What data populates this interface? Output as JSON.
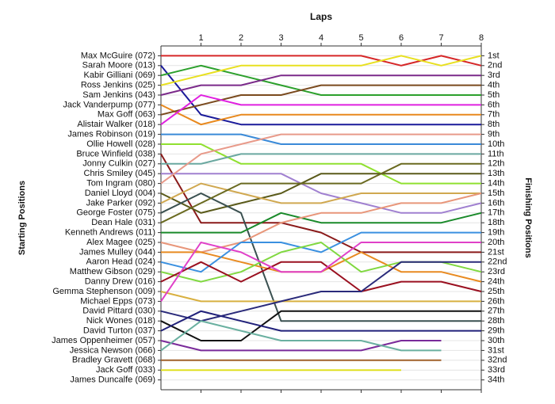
{
  "chart_data": {
    "type": "line",
    "title": "Laps",
    "y_label": "Starting Positions",
    "y2_label": "Finishing Positions",
    "xlim": [
      0,
      8
    ],
    "xticks": [
      1,
      2,
      3,
      4,
      5,
      6,
      7,
      8
    ],
    "ylim": [
      35,
      0
    ],
    "yticks": [
      1,
      2,
      3,
      4,
      5,
      6,
      7,
      8,
      9,
      10,
      11,
      12,
      13,
      14,
      15,
      16,
      17,
      18,
      19,
      20,
      21,
      22,
      23,
      24,
      25,
      26,
      27,
      28,
      29,
      30,
      31,
      32,
      33,
      34
    ],
    "y2lim": [
      35,
      0
    ],
    "y2ticks": [
      {
        "value": 1,
        "label": "1st"
      },
      {
        "value": 2,
        "label": "2nd"
      },
      {
        "value": 3,
        "label": "3rd"
      },
      {
        "value": 4,
        "label": "4th"
      },
      {
        "value": 5,
        "label": "5th"
      },
      {
        "value": 6,
        "label": "6th"
      },
      {
        "value": 7,
        "label": "7th"
      },
      {
        "value": 8,
        "label": "8th"
      },
      {
        "value": 9,
        "label": "9th"
      },
      {
        "value": 10,
        "label": "10th"
      },
      {
        "value": 11,
        "label": "11th"
      },
      {
        "value": 12,
        "label": "12th"
      },
      {
        "value": 13,
        "label": "13th"
      },
      {
        "value": 14,
        "label": "14th"
      },
      {
        "value": 15,
        "label": "15th"
      },
      {
        "value": 16,
        "label": "16th"
      },
      {
        "value": 17,
        "label": "17th"
      },
      {
        "value": 18,
        "label": "18th"
      },
      {
        "value": 19,
        "label": "19th"
      },
      {
        "value": 20,
        "label": "20th"
      },
      {
        "value": 21,
        "label": "21st"
      },
      {
        "value": 22,
        "label": "22nd"
      },
      {
        "value": 23,
        "label": "23rd"
      },
      {
        "value": 24,
        "label": "24th"
      },
      {
        "value": 25,
        "label": "25th"
      },
      {
        "value": 26,
        "label": "26th"
      },
      {
        "value": 27,
        "label": "27th"
      },
      {
        "value": 28,
        "label": "28th"
      },
      {
        "value": 29,
        "label": "29th"
      },
      {
        "value": 30,
        "label": "30th"
      },
      {
        "value": 31,
        "label": "31st"
      },
      {
        "value": 32,
        "label": "32nd"
      },
      {
        "value": 33,
        "label": "33rd"
      },
      {
        "value": 34,
        "label": "34th"
      }
    ],
    "grid": true,
    "x": [
      0,
      1,
      2,
      3,
      4,
      5,
      6,
      7,
      8
    ],
    "series": [
      {
        "name": "Max McGuire (072)",
        "color": "#d62728",
        "values": [
          1,
          1,
          1,
          1,
          1,
          1,
          2,
          1,
          2
        ]
      },
      {
        "name": "Sarah Moore (013)",
        "color": "#1a1a9a",
        "values": [
          2,
          7,
          8,
          8,
          8,
          8,
          8,
          8,
          8
        ]
      },
      {
        "name": "Kabir Gilliani (069)",
        "color": "#2ca02c",
        "values": [
          3,
          2,
          3,
          4,
          5,
          5,
          5,
          5,
          5
        ]
      },
      {
        "name": "Ross Jenkins (025)",
        "color": "#e8e020",
        "values": [
          4,
          3,
          2,
          2,
          2,
          2,
          1,
          2,
          1
        ]
      },
      {
        "name": "Sam Jenkins (043)",
        "color": "#7b2a8a",
        "values": [
          5,
          4,
          4,
          3,
          3,
          3,
          3,
          3,
          3
        ]
      },
      {
        "name": "Jack Vanderpump (077)",
        "color": "#e8891e",
        "values": [
          6,
          8,
          7,
          7,
          7,
          7,
          7,
          7,
          7
        ]
      },
      {
        "name": "Max Goff (063)",
        "color": "#7a4a1e",
        "values": [
          7,
          6,
          5,
          5,
          4,
          4,
          4,
          4,
          4
        ]
      },
      {
        "name": "Alistair Walker (018)",
        "color": "#e020e0",
        "values": [
          8,
          5,
          6,
          6,
          6,
          6,
          6,
          6,
          6
        ]
      },
      {
        "name": "James Robinson (019)",
        "color": "#3a8ad8",
        "values": [
          9,
          9,
          9,
          10,
          10,
          10,
          10,
          10,
          10
        ]
      },
      {
        "name": "Ollie Howell (028)",
        "color": "#90e030",
        "values": [
          10,
          10,
          12,
          12,
          12,
          12,
          14,
          14,
          14
        ]
      },
      {
        "name": "Bruce Winfield (038)",
        "color": "#8a1a1a",
        "values": [
          11,
          18,
          18,
          18,
          19,
          21,
          21,
          21,
          21
        ]
      },
      {
        "name": "Jonny Culkin (027)",
        "color": "#6aa8a0",
        "values": [
          12,
          12,
          11,
          11,
          11,
          11,
          11,
          11,
          11
        ]
      },
      {
        "name": "Chris Smiley (045)",
        "color": "#a080d0",
        "values": [
          13,
          13,
          13,
          13,
          15,
          16,
          17,
          17,
          16
        ]
      },
      {
        "name": "Tom Ingram (080)",
        "color": "#e89a8a",
        "values": [
          14,
          11,
          10,
          9,
          9,
          9,
          9,
          9,
          9
        ]
      },
      {
        "name": "Daniel Lloyd (004)",
        "color": "#5a5a1a",
        "values": [
          15,
          17,
          16,
          15,
          13,
          13,
          13,
          13,
          13
        ]
      },
      {
        "name": "Jake Parker (092)",
        "color": "#d0a850",
        "values": [
          16,
          14,
          15,
          16,
          16,
          15,
          15,
          15,
          15
        ]
      },
      {
        "name": "George Foster (075)",
        "color": "#3a5050",
        "values": [
          17,
          15,
          17,
          28,
          28,
          28,
          28,
          28,
          28
        ]
      },
      {
        "name": "Dean Hale (031)",
        "color": "#6a6a20",
        "values": [
          18,
          16,
          14,
          14,
          14,
          14,
          12,
          12,
          12
        ]
      },
      {
        "name": "Kenneth Andrews (011)",
        "color": "#1a8a2a",
        "values": [
          19,
          19,
          19,
          17,
          18,
          18,
          18,
          18,
          17
        ]
      },
      {
        "name": "Alex Magee (025)",
        "color": "#e8967a",
        "values": [
          20,
          21,
          20,
          18,
          17,
          17,
          16,
          16,
          15
        ]
      },
      {
        "name": "James Mulley (044)",
        "color": "#e88a20",
        "values": [
          21,
          21,
          22,
          23,
          23,
          21,
          23,
          23,
          24
        ]
      },
      {
        "name": "Aaron Head (024)",
        "color": "#3a90e0",
        "values": [
          22,
          23,
          20,
          20,
          21,
          19,
          19,
          19,
          19
        ]
      },
      {
        "name": "Matthew Gibson (029)",
        "color": "#80d840",
        "values": [
          23,
          24,
          23,
          21,
          20,
          23,
          22,
          22,
          23
        ]
      },
      {
        "name": "Danny Drew (016)",
        "color": "#9a1020",
        "values": [
          24,
          22,
          24,
          22,
          22,
          25,
          24,
          24,
          25
        ]
      },
      {
        "name": "Gemma Stephenson (009)",
        "color": "#d8b040",
        "values": [
          25,
          26,
          26,
          26,
          26,
          26,
          26,
          26,
          26
        ]
      },
      {
        "name": "Michael Epps (073)",
        "color": "#e040c8",
        "values": [
          26,
          20,
          21,
          23,
          23,
          20,
          20,
          20,
          20
        ]
      },
      {
        "name": "David Pittard (030)",
        "color": "#2a2a7a",
        "values": [
          27,
          28,
          27,
          26,
          25,
          25,
          22,
          22,
          22
        ]
      },
      {
        "name": "Nick Wones (018)",
        "color": "#111111",
        "values": [
          28,
          30,
          30,
          27,
          27,
          27,
          27,
          27,
          27
        ]
      },
      {
        "name": "David Turton (037)",
        "color": "#20207a",
        "values": [
          29,
          27,
          28,
          29,
          29,
          29,
          29,
          29,
          29
        ]
      },
      {
        "name": "James Oppenheimer (057)",
        "color": "#7a2a9a",
        "values": [
          30,
          31,
          31,
          31,
          31,
          31,
          30,
          30,
          null
        ]
      },
      {
        "name": "Jessica Newson (066)",
        "color": "#6ab0a0",
        "values": [
          31,
          28,
          29,
          30,
          30,
          30,
          31,
          31,
          null
        ]
      },
      {
        "name": "Bradley Gravett (068)",
        "color": "#a0602a",
        "values": [
          32,
          32,
          32,
          32,
          32,
          32,
          32,
          32,
          null
        ]
      },
      {
        "name": "Jack Goff (033)",
        "color": "#e0e020",
        "values": [
          33,
          33,
          33,
          33,
          33,
          33,
          33,
          null,
          null
        ]
      },
      {
        "name": "James Duncalfe (069)",
        "color": "#888888",
        "values": [
          34,
          null,
          null,
          null,
          null,
          null,
          null,
          null,
          null
        ]
      }
    ]
  }
}
